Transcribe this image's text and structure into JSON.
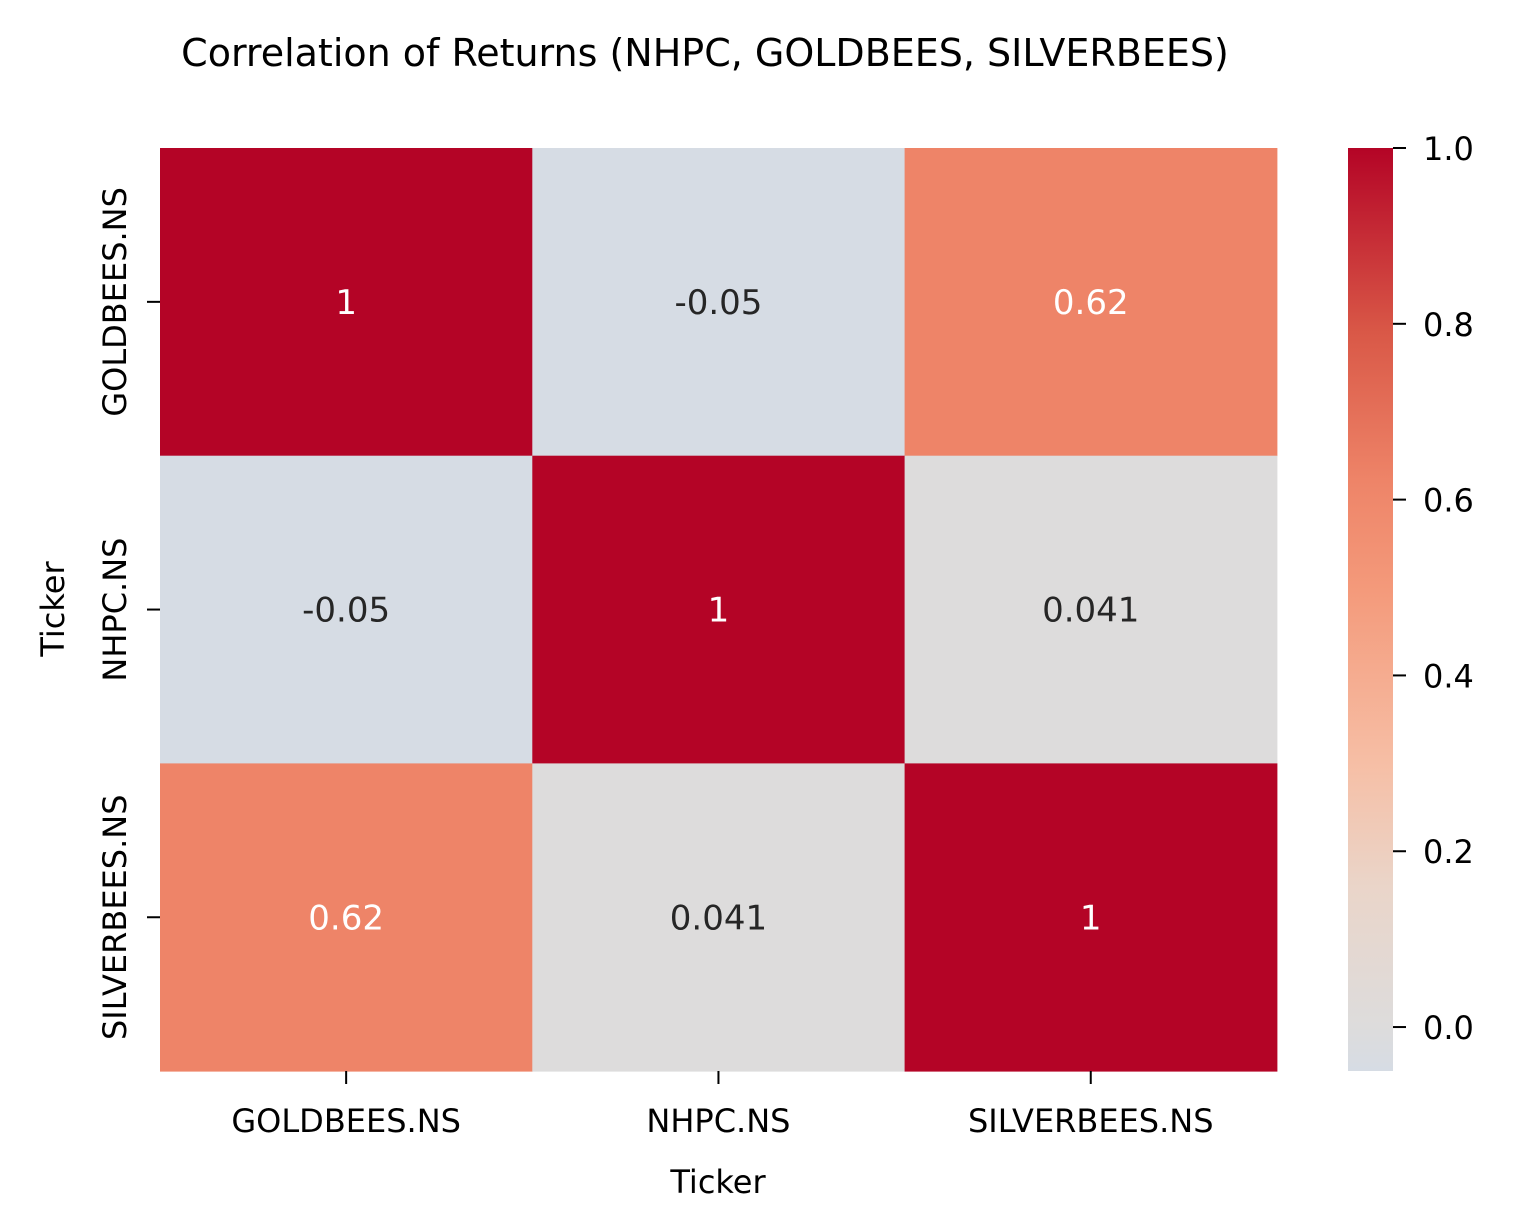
{
  "chart_data": {
    "type": "heatmap",
    "title": "Correlation of Returns (NHPC, GOLDBEES, SILVERBEES)",
    "xlabel": "Ticker",
    "ylabel": "Ticker",
    "x_categories": [
      "GOLDBEES.NS",
      "NHPC.NS",
      "SILVERBEES.NS"
    ],
    "y_categories": [
      "GOLDBEES.NS",
      "NHPC.NS",
      "SILVERBEES.NS"
    ],
    "values": [
      [
        1,
        -0.05,
        0.62
      ],
      [
        -0.05,
        1,
        0.041
      ],
      [
        0.62,
        0.041,
        1
      ]
    ],
    "annotations": [
      [
        "1",
        "-0.05",
        "0.62"
      ],
      [
        "-0.05",
        "1",
        "0.041"
      ],
      [
        "0.62",
        "0.041",
        "1"
      ]
    ],
    "colorbar": {
      "range": [
        -0.05,
        1.0
      ],
      "ticks": [
        0.0,
        0.2,
        0.4,
        0.6,
        0.8,
        1.0
      ],
      "tick_labels": [
        "0.0",
        "0.2",
        "0.4",
        "0.6",
        "0.8",
        "1.0"
      ],
      "colormap": "coolwarm (centered at 0)"
    },
    "colors": {
      "high": "#b40426",
      "mid_high": "#ee8468",
      "neutral": "#dddcdc",
      "low": "#d6dce4"
    }
  }
}
